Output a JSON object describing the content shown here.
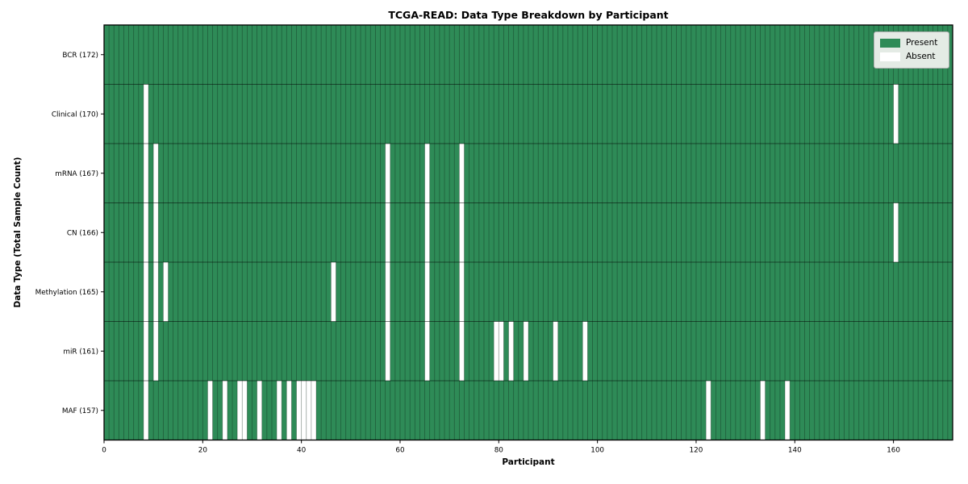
{
  "title": "TCGA-READ: Data Type Breakdown by Participant",
  "xlabel": "Participant",
  "ylabel": "Data Type (Total Sample Count)",
  "legend": {
    "present_label": "Present",
    "absent_label": "Absent"
  },
  "colors": {
    "present": "#2e8b57",
    "absent": "#ffffff"
  },
  "chart_data": {
    "type": "heatmap",
    "title": "TCGA-READ: Data Type Breakdown by Participant",
    "xlabel": "Participant",
    "ylabel": "Data Type (Total Sample Count)",
    "n_participants": 172,
    "x_range": [
      0,
      172
    ],
    "x_ticks": [
      0,
      20,
      40,
      60,
      80,
      100,
      120,
      140,
      160
    ],
    "legend_entries": [
      "Present",
      "Absent"
    ],
    "legend_position": "upper right",
    "cell_states": "green = data type present for participant, white = absent",
    "rows": [
      {
        "label": "BCR (172)",
        "data_type": "BCR",
        "total": 172,
        "absent_participants": []
      },
      {
        "label": "Clinical (170)",
        "data_type": "Clinical",
        "total": 170,
        "absent_participants": [
          8,
          160
        ]
      },
      {
        "label": "mRNA (167)",
        "data_type": "mRNA",
        "total": 167,
        "absent_participants": [
          8,
          10,
          57,
          65,
          72
        ]
      },
      {
        "label": "CN (166)",
        "data_type": "CN",
        "total": 166,
        "absent_participants": [
          8,
          10,
          57,
          65,
          72,
          160
        ]
      },
      {
        "label": "Methylation (165)",
        "data_type": "Methylation",
        "total": 165,
        "absent_participants": [
          8,
          10,
          12,
          46,
          57,
          65,
          72
        ]
      },
      {
        "label": "miR (161)",
        "data_type": "miR",
        "total": 161,
        "absent_participants": [
          8,
          10,
          57,
          65,
          72,
          79,
          80,
          82,
          85,
          91,
          97
        ]
      },
      {
        "label": "MAF (157)",
        "data_type": "MAF",
        "total": 157,
        "absent_participants": [
          8,
          21,
          24,
          27,
          28,
          31,
          35,
          37,
          39,
          40,
          41,
          42,
          122,
          133,
          138
        ]
      }
    ]
  }
}
